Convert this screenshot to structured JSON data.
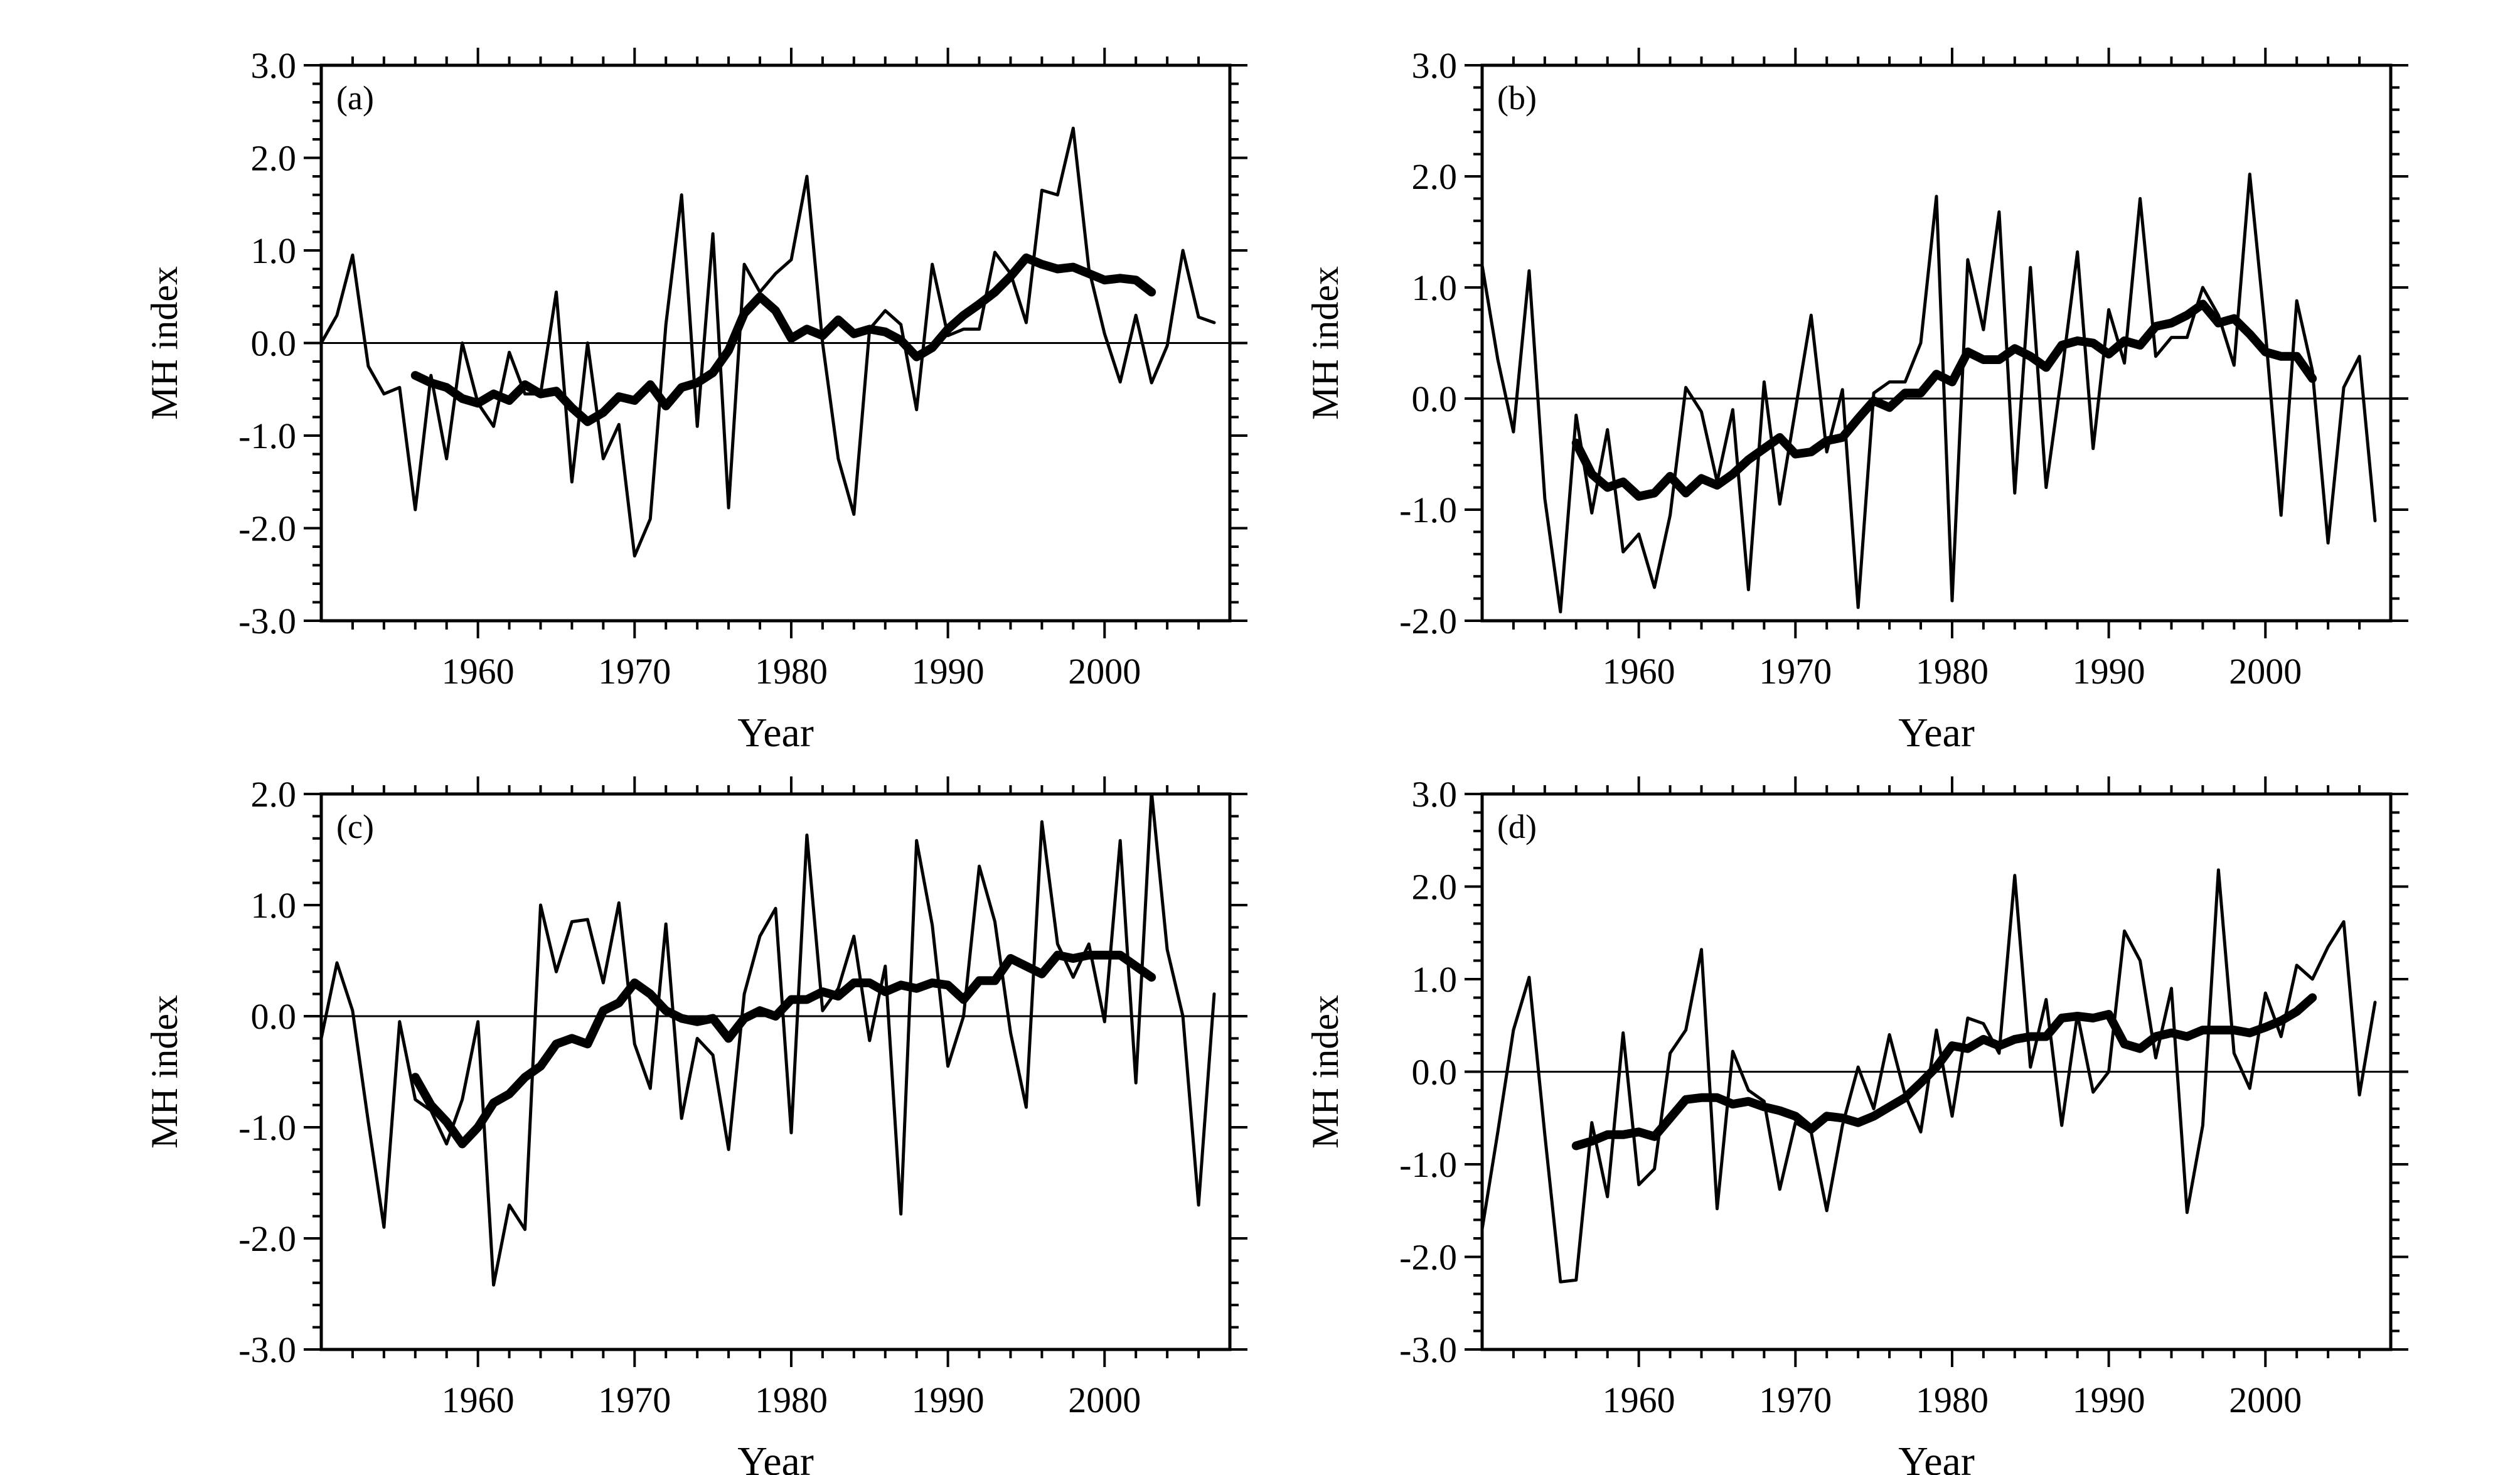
{
  "chart_data": [
    {
      "type": "line",
      "panel_label": "(a)",
      "xlabel": "Year",
      "ylabel": "MH index",
      "xlim": [
        1950,
        2008
      ],
      "ylim": [
        -3,
        3
      ],
      "xticks": [
        1960,
        1970,
        1980,
        1990,
        2000
      ],
      "yticks": [
        -3,
        -2,
        -1,
        0,
        1,
        2,
        3
      ],
      "ytick_labels": [
        "-3.0",
        "-2.0",
        "-1.0",
        "0.0",
        "1.0",
        "2.0",
        "3.0"
      ],
      "zero_line": true,
      "series": [
        {
          "x_start": 1950,
          "values": [
            0.0,
            0.3,
            0.95,
            -0.25,
            -0.55,
            -0.48,
            -1.8,
            -0.35,
            -1.25,
            0.0,
            -0.65,
            -0.9,
            -0.1,
            -0.55,
            -0.55,
            0.55,
            -1.5,
            0.0,
            -1.25,
            -0.88,
            -2.3,
            -1.9,
            0.2,
            1.6,
            -0.9,
            1.18,
            -1.78,
            0.85,
            0.55,
            0.75,
            0.9,
            1.8,
            0.0,
            -1.25,
            -1.85,
            0.15,
            0.35,
            0.2,
            -0.72,
            0.85,
            0.08,
            0.15,
            0.15,
            0.98,
            0.75,
            0.22,
            1.65,
            1.6,
            2.32,
            0.8,
            0.1,
            -0.42,
            0.3,
            -0.43,
            -0.03,
            1.0,
            0.28,
            0.22
          ]
        },
        {
          "x_start": 1956,
          "values": [
            -0.35,
            -0.43,
            -0.48,
            -0.6,
            -0.65,
            -0.55,
            -0.62,
            -0.45,
            -0.55,
            -0.52,
            -0.7,
            -0.85,
            -0.75,
            -0.58,
            -0.62,
            -0.45,
            -0.68,
            -0.48,
            -0.43,
            -0.32,
            -0.08,
            0.32,
            0.5,
            0.35,
            0.05,
            0.15,
            0.08,
            0.25,
            0.1,
            0.15,
            0.12,
            0.03,
            -0.15,
            -0.05,
            0.15,
            0.3,
            0.42,
            0.55,
            0.72,
            0.92,
            0.85,
            0.8,
            0.82,
            0.75,
            0.68,
            0.7,
            0.68,
            0.55
          ]
        }
      ]
    },
    {
      "type": "line",
      "panel_label": "(b)",
      "xlabel": "Year",
      "ylabel": "MH index",
      "xlim": [
        1950,
        2008
      ],
      "ylim": [
        -2,
        3
      ],
      "xticks": [
        1960,
        1970,
        1980,
        1990,
        2000
      ],
      "yticks": [
        -2,
        -1,
        0,
        1,
        2,
        3
      ],
      "ytick_labels": [
        "-2.0",
        "-1.0",
        "0.0",
        "1.0",
        "2.0",
        "3.0"
      ],
      "zero_line": true,
      "series": [
        {
          "x_start": 1950,
          "values": [
            1.2,
            0.35,
            -0.3,
            1.15,
            -0.9,
            -1.92,
            -0.15,
            -1.03,
            -0.28,
            -1.38,
            -1.22,
            -1.7,
            -1.05,
            0.1,
            -0.12,
            -0.75,
            -0.1,
            -1.72,
            0.15,
            -0.95,
            -0.1,
            0.75,
            -0.48,
            0.08,
            -1.88,
            0.05,
            0.15,
            0.15,
            0.5,
            1.82,
            -1.82,
            1.25,
            0.62,
            1.68,
            -0.85,
            1.18,
            -0.8,
            0.22,
            1.32,
            -0.45,
            0.8,
            0.32,
            1.8,
            0.38,
            0.55,
            0.55,
            1.0,
            0.75,
            0.3,
            2.02,
            0.6,
            -1.05,
            0.88,
            0.25,
            -1.3,
            0.1,
            0.38,
            -1.1
          ]
        },
        {
          "x_start": 1956,
          "values": [
            -0.4,
            -0.68,
            -0.8,
            -0.75,
            -0.88,
            -0.85,
            -0.7,
            -0.85,
            -0.72,
            -0.78,
            -0.68,
            -0.55,
            -0.45,
            -0.35,
            -0.5,
            -0.48,
            -0.38,
            -0.35,
            -0.18,
            -0.02,
            -0.08,
            0.05,
            0.05,
            0.22,
            0.15,
            0.42,
            0.35,
            0.35,
            0.45,
            0.38,
            0.28,
            0.48,
            0.52,
            0.5,
            0.4,
            0.52,
            0.48,
            0.65,
            0.68,
            0.75,
            0.85,
            0.68,
            0.72,
            0.58,
            0.42,
            0.38,
            0.38,
            0.18
          ]
        }
      ]
    },
    {
      "type": "line",
      "panel_label": "(c)",
      "xlabel": "Year",
      "ylabel": "MH index",
      "xlim": [
        1950,
        2008
      ],
      "ylim": [
        -3,
        2
      ],
      "xticks": [
        1960,
        1970,
        1980,
        1990,
        2000
      ],
      "yticks": [
        -3,
        -2,
        -1,
        0,
        1,
        2
      ],
      "ytick_labels": [
        "-3.0",
        "-2.0",
        "-1.0",
        "0.0",
        "1.0",
        "2.0"
      ],
      "zero_line": true,
      "series": [
        {
          "x_start": 1950,
          "values": [
            -0.2,
            0.48,
            0.05,
            -0.95,
            -1.9,
            -0.05,
            -0.75,
            -0.85,
            -1.15,
            -0.75,
            -0.05,
            -2.42,
            -1.7,
            -1.92,
            1.0,
            0.4,
            0.85,
            0.87,
            0.3,
            1.02,
            -0.25,
            -0.65,
            0.83,
            -0.92,
            -0.2,
            -0.35,
            -1.2,
            0.2,
            0.72,
            0.97,
            -1.05,
            1.63,
            0.05,
            0.25,
            0.72,
            -0.22,
            0.45,
            -1.78,
            1.58,
            0.82,
            -0.45,
            0.0,
            1.35,
            0.85,
            -0.15,
            -0.82,
            1.75,
            0.65,
            0.35,
            0.65,
            -0.05,
            1.58,
            -0.6,
            2.02,
            0.6,
            0.0,
            -1.7,
            0.2
          ]
        },
        {
          "x_start": 1956,
          "values": [
            -0.55,
            -0.8,
            -0.95,
            -1.15,
            -1.0,
            -0.78,
            -0.7,
            -0.55,
            -0.45,
            -0.25,
            -0.2,
            -0.25,
            0.05,
            0.12,
            0.3,
            0.2,
            0.05,
            -0.02,
            -0.05,
            -0.02,
            -0.2,
            -0.02,
            0.05,
            0.0,
            0.15,
            0.15,
            0.22,
            0.18,
            0.3,
            0.3,
            0.22,
            0.28,
            0.25,
            0.3,
            0.28,
            0.15,
            0.32,
            0.32,
            0.52,
            0.45,
            0.38,
            0.55,
            0.52,
            0.55,
            0.55,
            0.55,
            0.45,
            0.35
          ]
        }
      ]
    },
    {
      "type": "line",
      "panel_label": "(d)",
      "xlabel": "Year",
      "ylabel": "MH index",
      "xlim": [
        1950,
        2008
      ],
      "ylim": [
        -3,
        3
      ],
      "xticks": [
        1960,
        1970,
        1980,
        1990,
        2000
      ],
      "yticks": [
        -3,
        -2,
        -1,
        0,
        1,
        2,
        3
      ],
      "ytick_labels": [
        "-3.0",
        "-2.0",
        "-1.0",
        "0.0",
        "1.0",
        "2.0",
        "3.0"
      ],
      "zero_line": true,
      "series": [
        {
          "x_start": 1950,
          "values": [
            -1.7,
            -0.65,
            0.45,
            1.02,
            -0.68,
            -2.27,
            -2.25,
            -0.55,
            -1.35,
            0.42,
            -1.22,
            -1.05,
            0.2,
            0.45,
            1.32,
            -1.48,
            0.22,
            -0.2,
            -0.32,
            -1.27,
            -0.55,
            -0.65,
            -1.5,
            -0.58,
            0.05,
            -0.4,
            0.4,
            -0.25,
            -0.65,
            0.45,
            -0.48,
            0.58,
            0.52,
            0.2,
            2.12,
            0.05,
            0.78,
            -0.58,
            0.62,
            -0.22,
            0.0,
            1.52,
            1.2,
            0.15,
            0.9,
            -1.52,
            -0.58,
            2.18,
            0.2,
            -0.18,
            0.85,
            0.38,
            1.15,
            1.0,
            1.35,
            1.62,
            -0.25,
            0.75
          ]
        },
        {
          "x_start": 1956,
          "values": [
            -0.8,
            -0.75,
            -0.68,
            -0.68,
            -0.65,
            -0.7,
            -0.5,
            -0.3,
            -0.28,
            -0.28,
            -0.35,
            -0.32,
            -0.38,
            -0.42,
            -0.48,
            -0.62,
            -0.48,
            -0.5,
            -0.55,
            -0.48,
            -0.38,
            -0.28,
            -0.12,
            0.05,
            0.28,
            0.25,
            0.35,
            0.28,
            0.35,
            0.38,
            0.38,
            0.58,
            0.6,
            0.58,
            0.62,
            0.3,
            0.25,
            0.38,
            0.42,
            0.38,
            0.45,
            0.45,
            0.45,
            0.42,
            0.48,
            0.55,
            0.65,
            0.8
          ]
        }
      ]
    }
  ]
}
